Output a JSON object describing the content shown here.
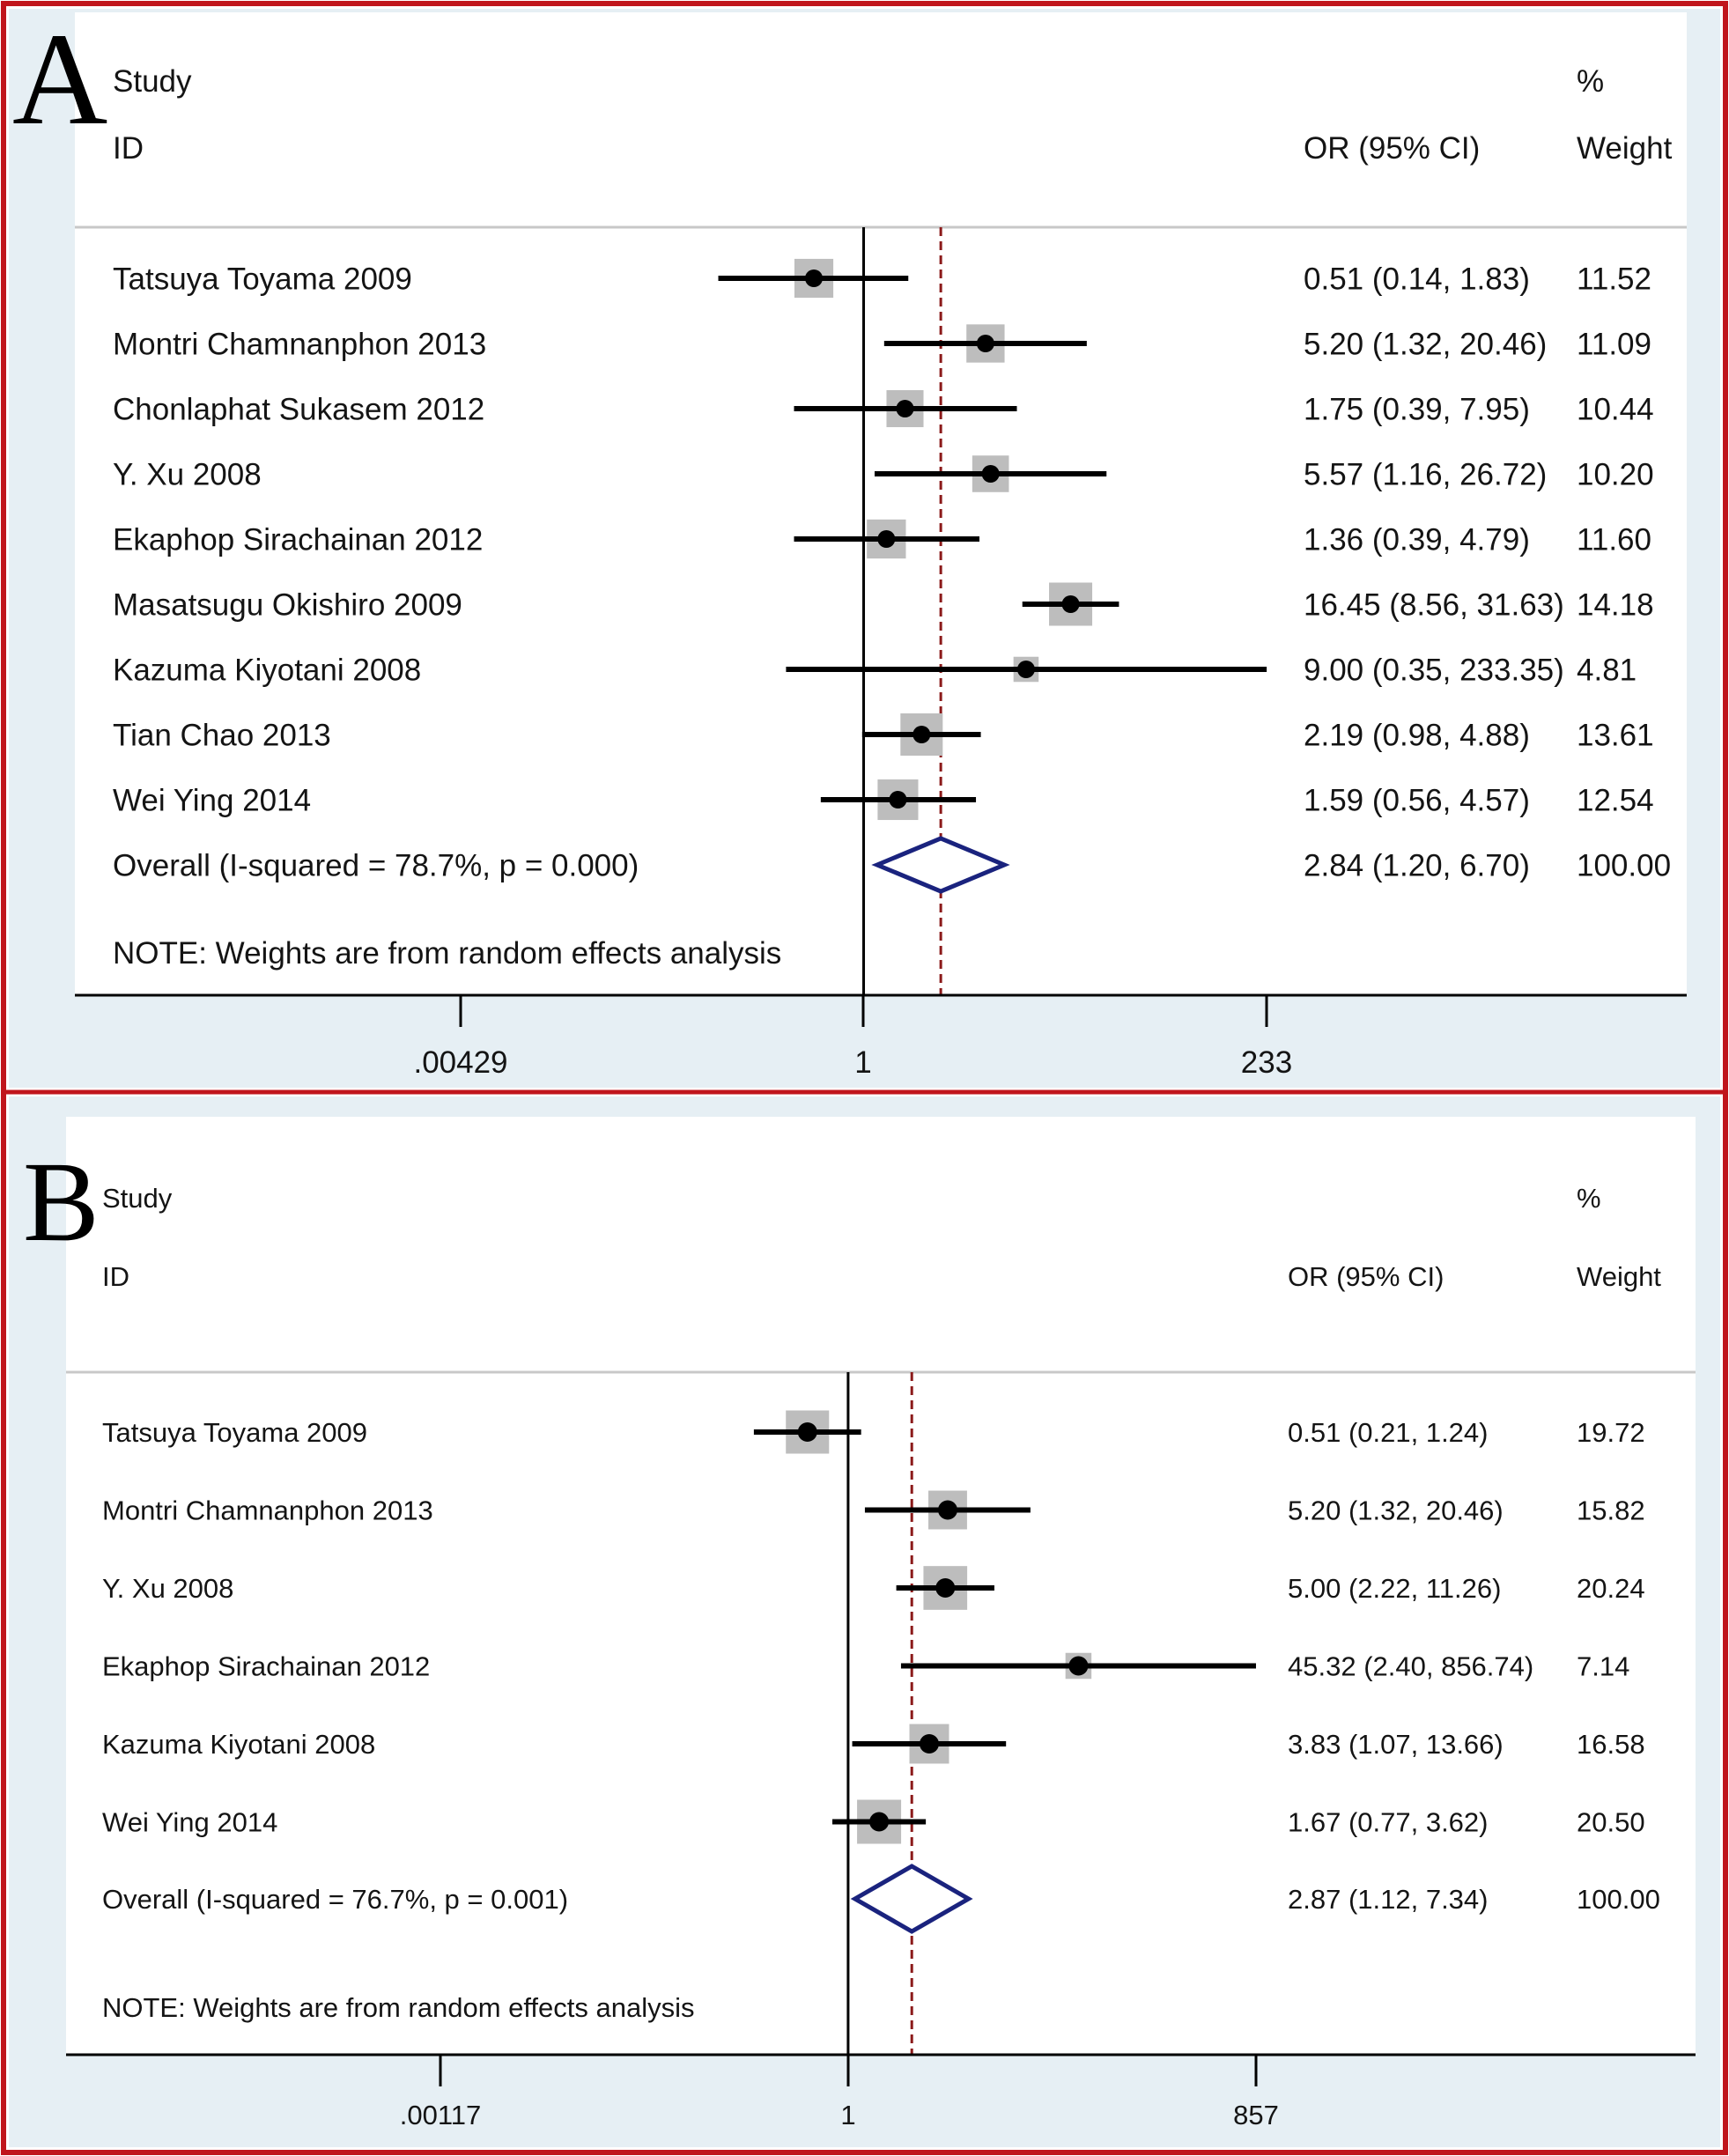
{
  "figure": {
    "border_color": "#c0151c",
    "panel_background": "#e6eff4",
    "diamond_color": "#1a237e",
    "reference_line_color": "#8b1a1a",
    "box_color": "#bdbdbd"
  },
  "chart_data": [
    {
      "type": "forest",
      "panel_label": "A",
      "header": {
        "study": "Study",
        "id": "ID",
        "effect": "OR (95% CI)",
        "weight_top": "%",
        "weight": "Weight"
      },
      "x_scale": "log",
      "xlim": [
        0.00429,
        233
      ],
      "x_ticks": [
        {
          "value": 0.00429,
          "label": ".00429"
        },
        {
          "value": 1,
          "label": "1"
        },
        {
          "value": 233,
          "label": "233"
        }
      ],
      "null_line": 1,
      "studies": [
        {
          "name": "Tatsuya Toyama 2009",
          "or": 0.51,
          "lo": 0.14,
          "hi": 1.83,
          "ci_text": "0.51 (0.14, 1.83)",
          "weight": 11.52,
          "weight_text": "11.52"
        },
        {
          "name": "Montri Chamnanphon 2013",
          "or": 5.2,
          "lo": 1.32,
          "hi": 20.46,
          "ci_text": "5.20 (1.32, 20.46)",
          "weight": 11.09,
          "weight_text": "11.09"
        },
        {
          "name": "Chonlaphat  Sukasem 2012",
          "or": 1.75,
          "lo": 0.39,
          "hi": 7.95,
          "ci_text": "1.75 (0.39, 7.95)",
          "weight": 10.44,
          "weight_text": "10.44"
        },
        {
          "name": "Y. Xu 2008",
          "or": 5.57,
          "lo": 1.16,
          "hi": 26.72,
          "ci_text": "5.57 (1.16, 26.72)",
          "weight": 10.2,
          "weight_text": "10.20"
        },
        {
          "name": "Ekaphop Sirachainan 2012",
          "or": 1.36,
          "lo": 0.39,
          "hi": 4.79,
          "ci_text": "1.36 (0.39, 4.79)",
          "weight": 11.6,
          "weight_text": "11.60"
        },
        {
          "name": "Masatsugu Okishiro 2009",
          "or": 16.45,
          "lo": 8.56,
          "hi": 31.63,
          "ci_text": "16.45 (8.56, 31.63)",
          "weight": 14.18,
          "weight_text": "14.18"
        },
        {
          "name": "Kazuma Kiyotani 2008",
          "or": 9.0,
          "lo": 0.35,
          "hi": 233.35,
          "ci_text": "9.00 (0.35, 233.35)",
          "weight": 4.81,
          "weight_text": "4.81"
        },
        {
          "name": "Tian Chao 2013",
          "or": 2.19,
          "lo": 0.98,
          "hi": 4.88,
          "ci_text": "2.19 (0.98, 4.88)",
          "weight": 13.61,
          "weight_text": "13.61"
        },
        {
          "name": "Wei Ying 2014",
          "or": 1.59,
          "lo": 0.56,
          "hi": 4.57,
          "ci_text": "1.59 (0.56, 4.57)",
          "weight": 12.54,
          "weight_text": "12.54"
        }
      ],
      "overall": {
        "label": "Overall  (I-squared = 78.7%, p = 0.000)",
        "or": 2.84,
        "lo": 1.2,
        "hi": 6.7,
        "ci_text": "2.84 (1.20, 6.70)",
        "weight_text": "100.00"
      },
      "note": "NOTE: Weights are from random effects analysis"
    },
    {
      "type": "forest",
      "panel_label": "B",
      "header": {
        "study": "Study",
        "id": "ID",
        "effect": "OR (95% CI)",
        "weight_top": "%",
        "weight": "Weight"
      },
      "x_scale": "log",
      "xlim": [
        0.00117,
        857
      ],
      "x_ticks": [
        {
          "value": 0.00117,
          "label": ".00117"
        },
        {
          "value": 1,
          "label": "1"
        },
        {
          "value": 857,
          "label": "857"
        }
      ],
      "null_line": 1,
      "studies": [
        {
          "name": "Tatsuya Toyama 2009",
          "or": 0.51,
          "lo": 0.21,
          "hi": 1.24,
          "ci_text": "0.51 (0.21, 1.24)",
          "weight": 19.72,
          "weight_text": "19.72"
        },
        {
          "name": "Montri Chamnanphon 2013",
          "or": 5.2,
          "lo": 1.32,
          "hi": 20.46,
          "ci_text": "5.20 (1.32, 20.46)",
          "weight": 15.82,
          "weight_text": "15.82"
        },
        {
          "name": "Y. Xu 2008",
          "or": 5.0,
          "lo": 2.22,
          "hi": 11.26,
          "ci_text": "5.00 (2.22, 11.26)",
          "weight": 20.24,
          "weight_text": "20.24"
        },
        {
          "name": "Ekaphop Sirachainan 2012",
          "or": 45.32,
          "lo": 2.4,
          "hi": 856.74,
          "ci_text": "45.32 (2.40, 856.74)",
          "weight": 7.14,
          "weight_text": "7.14"
        },
        {
          "name": "Kazuma Kiyotani 2008",
          "or": 3.83,
          "lo": 1.07,
          "hi": 13.66,
          "ci_text": "3.83 (1.07, 13.66)",
          "weight": 16.58,
          "weight_text": "16.58"
        },
        {
          "name": "Wei Ying 2014",
          "or": 1.67,
          "lo": 0.77,
          "hi": 3.62,
          "ci_text": "1.67 (0.77, 3.62)",
          "weight": 20.5,
          "weight_text": "20.50"
        }
      ],
      "overall": {
        "label": "Overall  (I-squared = 76.7%, p = 0.001)",
        "or": 2.87,
        "lo": 1.12,
        "hi": 7.34,
        "ci_text": "2.87 (1.12, 7.34)",
        "weight_text": "100.00"
      },
      "note": "NOTE: Weights are from random effects analysis"
    }
  ]
}
